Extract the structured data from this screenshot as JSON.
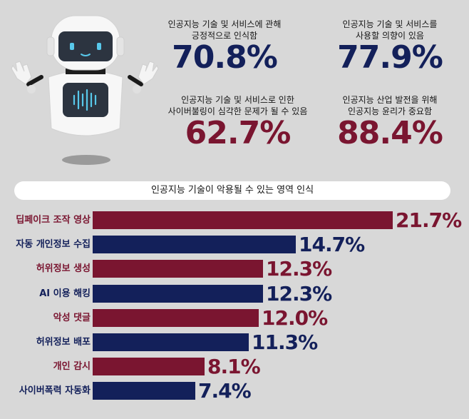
{
  "stats": [
    {
      "label_lines": [
        "인공지능 기술 및 서비스에 관해",
        "긍정적으로 인식함"
      ],
      "value": "70.8%",
      "color": "#13205a"
    },
    {
      "label_lines": [
        "인공지능 기술 및 서비스를",
        "사용할 의향이 있음"
      ],
      "value": "77.9%",
      "color": "#13205a"
    },
    {
      "label_lines": [
        "인공지능 기술 및 서비스로 인한",
        "사이버불링이 심각한 문제가 될 수 있음"
      ],
      "value": "62.7%",
      "color": "#7a1530"
    },
    {
      "label_lines": [
        "인공지능 산업 발전을 위해",
        "인공지능 윤리가 중요함"
      ],
      "value": "88.4%",
      "color": "#7a1530"
    }
  ],
  "chart_data": {
    "type": "bar",
    "orientation": "horizontal",
    "title": "인공지능 기술이 악용될 수 있는 영역 인식",
    "categories": [
      "딥페이크 조작 영상",
      "자동 개인정보 수집",
      "허위정보 생성",
      "AI 이용 해킹",
      "악성 댓글",
      "허위정보 배포",
      "개인 감시",
      "사이버폭력 자동화"
    ],
    "values": [
      21.7,
      14.7,
      12.3,
      12.3,
      12.0,
      11.3,
      8.1,
      7.4
    ],
    "value_labels": [
      "21.7%",
      "14.7%",
      "12.3%",
      "12.3%",
      "12.0%",
      "11.3%",
      "8.1%",
      "7.4%"
    ],
    "colors": [
      "#7a1530",
      "#13205a",
      "#7a1530",
      "#13205a",
      "#7a1530",
      "#13205a",
      "#7a1530",
      "#13205a"
    ],
    "xlim": [
      0,
      21.7
    ],
    "grid": false,
    "legend": "none"
  },
  "icons": {
    "robot": "robot-illustration-icon"
  }
}
